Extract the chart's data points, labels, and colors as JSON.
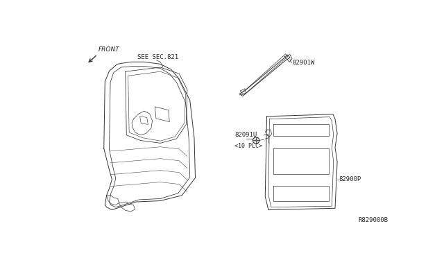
{
  "background_color": "#ffffff",
  "line_color": "#333333",
  "text_color": "#222222",
  "title_bottom_right": "R829000B",
  "front_label": "FRONT",
  "labels": {
    "see_sec821": "SEE SEC.821",
    "82901W": "82901W",
    "82091U": "82091U",
    "10plc": "<10 PLC>",
    "82900P": "82900P"
  },
  "font_size_label": 6.5,
  "font_size_small": 6.0,
  "font_size_title": 6.5
}
